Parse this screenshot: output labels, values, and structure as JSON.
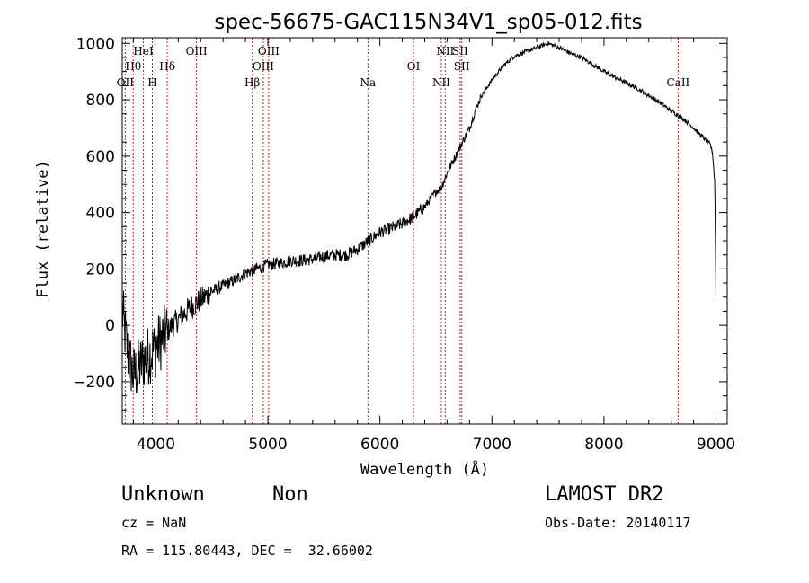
{
  "chart_data": {
    "type": "line",
    "title": "spec-56675-GAC115N34V1_sp05-012.fits",
    "xlabel": "Wavelength (Å)",
    "ylabel": "Flux (relative)",
    "xlim": [
      3700,
      9100
    ],
    "ylim": [
      -350,
      1020
    ],
    "xticks": [
      4000,
      5000,
      6000,
      7000,
      8000,
      9000
    ],
    "yticks": [
      -200,
      0,
      200,
      400,
      600,
      800,
      1000
    ],
    "xtick_labels": [
      "4000",
      "5000",
      "6000",
      "7000",
      "8000",
      "9000"
    ],
    "ytick_labels": [
      "−200",
      "0",
      "200",
      "400",
      "600",
      "800",
      "1000"
    ],
    "grid": false,
    "series": [
      {
        "x": [
          3700,
          3750,
          3800,
          3850,
          3900,
          3950,
          4000,
          4100,
          4200,
          4300,
          4400,
          4500,
          4600,
          4700,
          4800,
          4900,
          5000,
          5100,
          5200,
          5300,
          5400,
          5500,
          5600,
          5700,
          5800,
          5900,
          6000,
          6100,
          6200,
          6300,
          6400,
          6500,
          6550,
          6600,
          6700,
          6800,
          6850,
          6900,
          6950,
          7000,
          7100,
          7200,
          7300,
          7400,
          7500,
          7600,
          7700,
          7800,
          7900,
          8000,
          8100,
          8200,
          8300,
          8400,
          8500,
          8600,
          8700,
          8800,
          8900,
          8950,
          8970,
          8990,
          9000
        ],
        "y": [
          50,
          -100,
          -180,
          -150,
          -120,
          -100,
          -80,
          -20,
          20,
          60,
          90,
          120,
          140,
          160,
          185,
          200,
          215,
          220,
          230,
          230,
          235,
          245,
          250,
          250,
          270,
          300,
          330,
          345,
          360,
          385,
          420,
          475,
          490,
          540,
          620,
          700,
          760,
          810,
          840,
          870,
          920,
          955,
          970,
          985,
          1000,
          985,
          965,
          950,
          925,
          900,
          880,
          860,
          840,
          815,
          790,
          760,
          735,
          700,
          660,
          640,
          610,
          500,
          100
        ]
      }
    ],
    "emission_lines": [
      {
        "label": "OII",
        "x": 3727,
        "row": 3
      },
      {
        "label": "Hθ",
        "x": 3798,
        "row": 2
      },
      {
        "label": "HeI",
        "x": 3889,
        "row": 1
      },
      {
        "label": "H",
        "x": 3969,
        "row": 3
      },
      {
        "label": "Hδ",
        "x": 4102,
        "row": 2
      },
      {
        "label": "OIII",
        "x": 4363,
        "row": 1
      },
      {
        "label": "Hβ",
        "x": 4861,
        "row": 3
      },
      {
        "label": "OIII",
        "x": 4959,
        "row": 2
      },
      {
        "label": "OIII",
        "x": 5007,
        "row": 1
      },
      {
        "label": "Na",
        "x": 5893,
        "row": 3
      },
      {
        "label": "OI",
        "x": 6300,
        "row": 2
      },
      {
        "label": "NII",
        "x": 6548,
        "row": 3
      },
      {
        "label": "NII",
        "x": 6583,
        "row": 1
      },
      {
        "label": "SII",
        "x": 6716,
        "row": 1
      },
      {
        "label": "SII",
        "x": 6731,
        "row": 2
      },
      {
        "label": "CaII",
        "x": 8662,
        "row": 3
      }
    ],
    "line_color": "#000000",
    "marker_color": "#b22222"
  },
  "info": {
    "classification": "Unknown",
    "subclass": "Non",
    "survey": "LAMOST DR2",
    "cz": "cz = NaN",
    "obs_date": "Obs-Date: 20140117",
    "coords": "RA = 115.80443, DEC =  32.66002"
  }
}
